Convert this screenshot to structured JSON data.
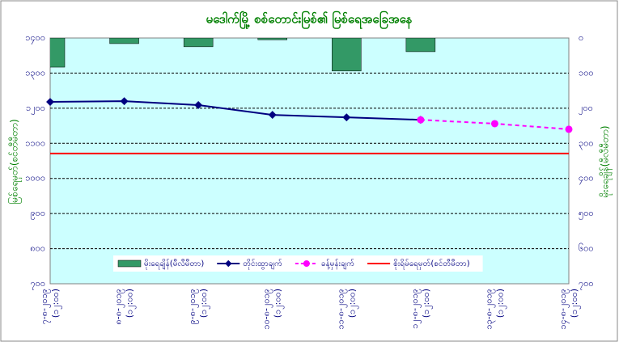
{
  "chart_data": {
    "type": "combo",
    "title": "မဒေါက်မြို့ စစ်တောင်းမြစ်၏ မြစ်ရေအခြေအနေ",
    "y_label": "မြစ်ရေမှတ်(စင်တီမီတာ)",
    "y2_label": "မိုးရေချိန်(မီလီမီတာ)",
    "categories": [
      "၇-၈-၂၀၁၉ (၁၂:၀၀)",
      "၈-၈-၂၀၁၉ (၁၂:၀၀)",
      "၉-၈-၂၀၁၉ (၁၂:၀၀)",
      "၁၀-၈-၂၀၁၉ (၁၂:၀၀)",
      "၁၁-၈-၂၀၁၉ (၁၂:၀၀)",
      "၁၂-၈-၂၀၁၉ (၁၂:၀၀)",
      "၁၃-၈-၂၀၁၉ (၁၂:၀၀)",
      "၁၄-၈-၂၀၁၉ (၁၂:၀၀)"
    ],
    "ylim": [
      700,
      1400
    ],
    "yticks": [
      {
        "value": 700,
        "label": "၇၀၀"
      },
      {
        "value": 800,
        "label": "၈၀၀"
      },
      {
        "value": 900,
        "label": "၉၀၀"
      },
      {
        "value": 1000,
        "label": "၁၀၀၀"
      },
      {
        "value": 1100,
        "label": "၁၁၀၀"
      },
      {
        "value": 1200,
        "label": "၁၂၀၀"
      },
      {
        "value": 1300,
        "label": "၁၃၀၀"
      },
      {
        "value": 1400,
        "label": "၁၄၀၀"
      }
    ],
    "y2lim": [
      700,
      0
    ],
    "y2ticks": [
      {
        "value": 0,
        "label": "၀"
      },
      {
        "value": 100,
        "label": "၁၀၀"
      },
      {
        "value": 200,
        "label": "၂၀၀"
      },
      {
        "value": 300,
        "label": "၃၀၀"
      },
      {
        "value": 400,
        "label": "၄၀၀"
      },
      {
        "value": 500,
        "label": "၅၀၀"
      },
      {
        "value": 600,
        "label": "၆၀၀"
      },
      {
        "value": 700,
        "label": "၇၀၀"
      }
    ],
    "grid": true,
    "series": [
      {
        "name": "မိုးရေချိန်(မီလီမီတာ)",
        "kind": "bar",
        "axis": "y2",
        "color": "#339966",
        "values": [
          83,
          16,
          25,
          5,
          94,
          39,
          null,
          null
        ]
      },
      {
        "name": "တိုင်းထွာချက်",
        "kind": "line",
        "color": "#000080",
        "values": [
          1218,
          1220,
          1209,
          1181,
          1174,
          1167,
          null,
          null
        ]
      },
      {
        "name": "ခန့်မှန်းချက်",
        "kind": "dashed",
        "color": "#ff00ff",
        "values": [
          null,
          null,
          null,
          null,
          null,
          1167,
          1156,
          1140
        ]
      },
      {
        "name": "စိုးရိမ်ရေမှတ်(စင်တီမီတာ)",
        "kind": "hline",
        "color": "#ff0000",
        "value": 1071
      }
    ]
  }
}
